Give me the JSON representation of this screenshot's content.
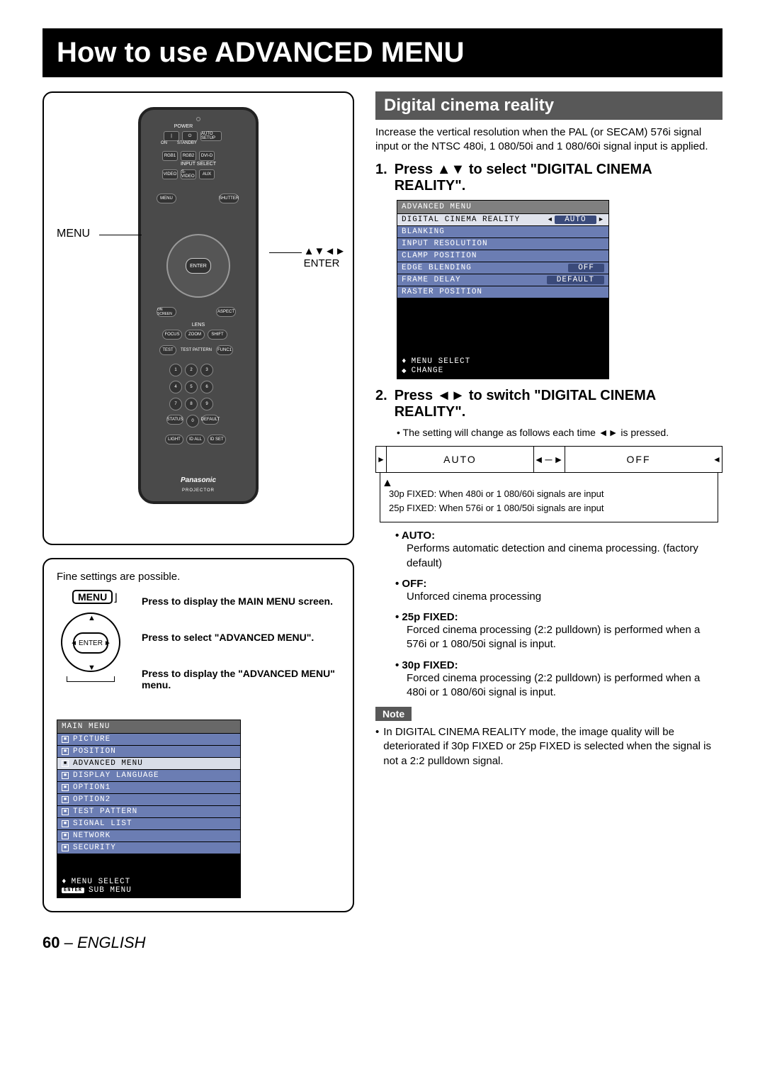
{
  "page_title": "How to use ADVANCED MENU",
  "remote": {
    "brand": "Panasonic",
    "subbrand": "PROJECTOR",
    "power_label": "POWER",
    "on": "ON",
    "standby": "STANDBY",
    "auto_setup": "AUTO SETUP",
    "input_select": "INPUT SELECT",
    "rgb1": "RGB1",
    "rgb2": "RGB2",
    "dvid": "DVI-D",
    "video": "VIDEO",
    "svideo": "S-VIDEO",
    "aux": "AUX",
    "menu_btn": "MENU",
    "shutter": "SHUTTER",
    "enter_btn": "ENTER",
    "onscreen": "ON SCREEN",
    "aspect": "ASPECT",
    "lens": "LENS",
    "focus": "FOCUS",
    "zoom": "ZOOM",
    "shift": "SHIFT",
    "test": "TEST",
    "test_pattern": "TEST PATTERN",
    "func1": "FUNC1",
    "status": "STATUS",
    "default": "DEFAULT",
    "light": "LIGHT",
    "idall": "ID ALL",
    "idset": "ID SET"
  },
  "callouts": {
    "menu": "MENU",
    "enter_arrows": "▲▼◄►",
    "enter": "ENTER"
  },
  "fine": {
    "heading": "Fine settings are possible.",
    "menu_badge": "MENU",
    "enter_badge": "ENTER",
    "step1": "Press to display the MAIN MENU screen.",
    "step2": "Press to select \"ADVANCED MENU\".",
    "step3": "Press to display the \"ADVANCED MENU\" menu."
  },
  "main_menu": {
    "title": "MAIN MENU",
    "items": [
      "PICTURE",
      "POSITION",
      "ADVANCED MENU",
      "DISPLAY LANGUAGE",
      "OPTION1",
      "OPTION2",
      "TEST PATTERN",
      "SIGNAL LIST",
      "NETWORK",
      "SECURITY"
    ],
    "selected_index": 2,
    "footer_select": "MENU SELECT",
    "footer_sub": "SUB MENU",
    "footer_enter_tag": "ENTER",
    "footer_arrow": "♦"
  },
  "right": {
    "section_title": "Digital cinema reality",
    "intro": "Increase the vertical resolution when the PAL (or SECAM) 576i signal input or the NTSC 480i, 1 080/50i and 1 080/60i signal input is applied.",
    "step1_num": "1.",
    "step1_text": "Press ▲▼ to select \"DIGITAL CINEMA REALITY\".",
    "step2_num": "2.",
    "step2_text": "Press ◄► to switch \"DIGITAL CINEMA REALITY\".",
    "step2_sub": "The setting will change as follows each time ◄► is pressed."
  },
  "adv_menu": {
    "title": "ADVANCED MENU",
    "rows": [
      {
        "label": "DIGITAL CINEMA REALITY",
        "value": "AUTO",
        "sel": true,
        "arrows": true
      },
      {
        "label": "BLANKING",
        "value": ""
      },
      {
        "label": "INPUT RESOLUTION",
        "value": ""
      },
      {
        "label": "CLAMP POSITION",
        "value": ""
      },
      {
        "label": "EDGE BLENDING",
        "value": "OFF"
      },
      {
        "label": "FRAME DELAY",
        "value": "DEFAULT"
      },
      {
        "label": "RASTER POSITION",
        "value": ""
      }
    ],
    "footer_select": "MENU SELECT",
    "footer_change": "CHANGE",
    "footer_ud": "♦",
    "footer_lr": "◆"
  },
  "cycle": {
    "opt1": "AUTO",
    "opt2": "OFF",
    "line1": "30p FIXED: When 480i or 1 080/60i signals are input",
    "line2": "25p FIXED: When 576i or 1 080/50i signals are input"
  },
  "options": [
    {
      "term": "AUTO:",
      "desc": "Performs automatic detection and cinema processing. (factory default)"
    },
    {
      "term": "OFF:",
      "desc": "Unforced cinema processing"
    },
    {
      "term": "25p FIXED:",
      "desc": "Forced cinema processing (2:2 pulldown) is performed when a 576i or 1 080/50i signal is input."
    },
    {
      "term": "30p FIXED:",
      "desc": "Forced cinema processing (2:2 pulldown) is performed when a 480i or 1 080/60i signal is input."
    }
  ],
  "note": {
    "tag": "Note",
    "text": "In DIGITAL CINEMA REALITY mode, the image quality will be deteriorated if 30p FIXED or 25p FIXED is selected when the signal is not a 2:2 pulldown signal."
  },
  "footer": {
    "page": "60",
    "dash": " – ",
    "lang": "ENGLISH"
  }
}
